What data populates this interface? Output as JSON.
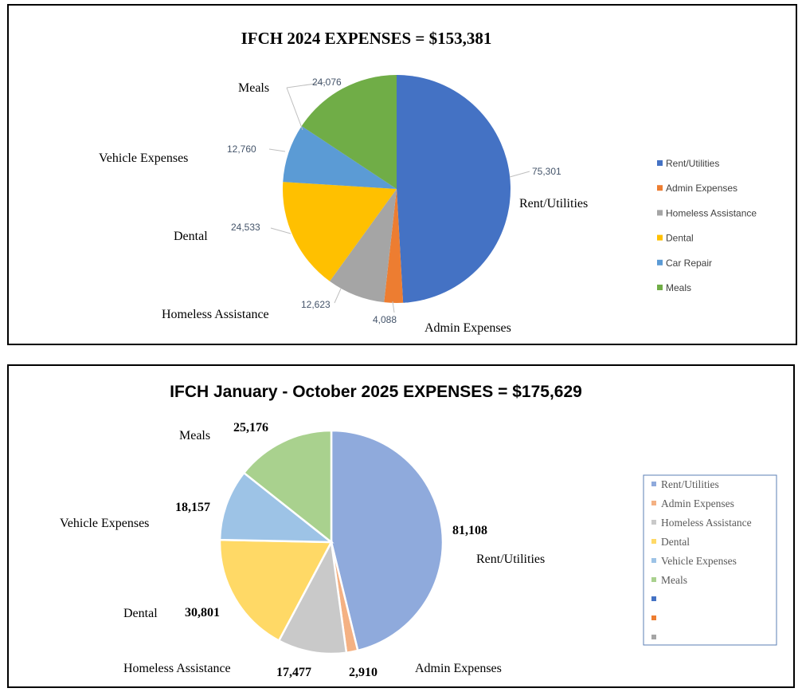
{
  "chart_data": [
    {
      "type": "pie",
      "title": "IFCH 2024 EXPENSES = $153,381",
      "categories": [
        "Rent/Utilities",
        "Admin Expenses",
        "Homeless Assistance",
        "Dental",
        "Vehicle Expenses",
        "Meals"
      ],
      "values": [
        75301,
        4088,
        12623,
        24533,
        12760,
        24076
      ],
      "value_labels": [
        "75,301",
        "4,088",
        "12,623",
        "24,533",
        "12,760",
        "24,076"
      ],
      "legend": [
        "Rent/Utilities",
        "Admin Expenses",
        "Homeless Assistance",
        "Dental",
        "Car Repair",
        "Meals"
      ],
      "legend_position": "right",
      "colors": [
        "#4472c4",
        "#ed7d31",
        "#a5a5a5",
        "#ffc000",
        "#5b9bd5",
        "#70ad47"
      ]
    },
    {
      "type": "pie",
      "title": "IFCH  January - October 2025 EXPENSES = $175,629",
      "categories": [
        "Rent/Utilities",
        "Admin Expenses",
        "Homeless Assistance",
        "Dental",
        "Vehicle Expenses",
        "Meals"
      ],
      "values": [
        81108,
        2910,
        17477,
        30801,
        18157,
        25176
      ],
      "value_labels": [
        "81,108",
        "2,910",
        "17,477",
        "30,801",
        "18,157",
        "25,176"
      ],
      "legend": [
        "Rent/Utilities",
        "Admin Expenses",
        "Homeless Assistance",
        "Dental",
        "Vehicle Expenses",
        "Meals",
        "",
        "",
        ""
      ],
      "legend_position": "right",
      "colors": [
        "#8faadc",
        "#f4b183",
        "#c9c9c9",
        "#ffd966",
        "#9dc3e6",
        "#a9d18e"
      ],
      "legend_extra_colors": [
        "#4472c4",
        "#ed7d31",
        "#a5a5a5"
      ]
    }
  ]
}
